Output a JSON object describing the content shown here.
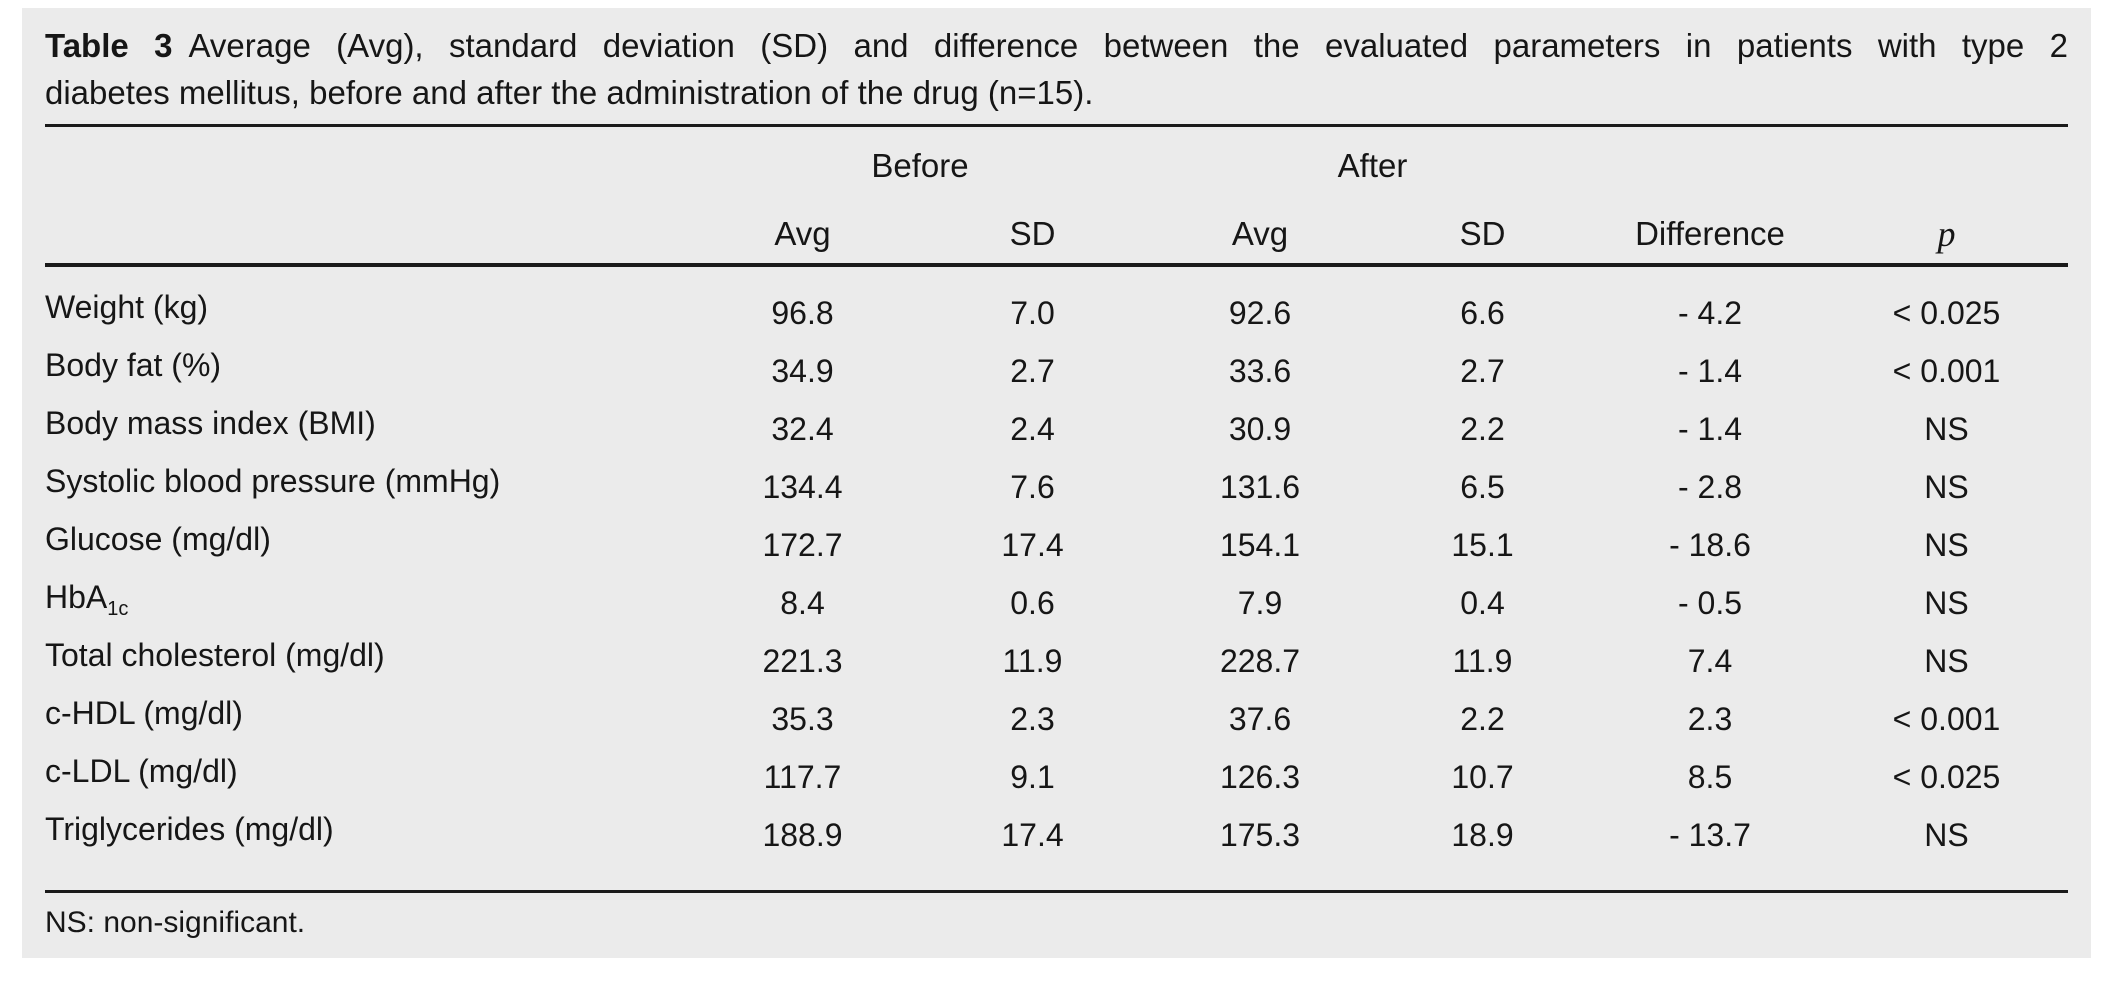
{
  "caption": {
    "label": "Table 3",
    "line1": "Average (Avg), standard deviation (SD) and difference between the evaluated parameters in patients with type 2",
    "line2": "diabetes mellitus, before and after the administration of the drug (n=15)."
  },
  "table": {
    "group_headers": {
      "before": "Before",
      "after": "After"
    },
    "col_headers": {
      "before_avg": "Avg",
      "before_sd": "SD",
      "after_avg": "Avg",
      "after_sd": "SD",
      "difference": "Difference",
      "p": "p"
    },
    "rows": [
      {
        "label": "Weight (kg)",
        "before_avg": "96.8",
        "before_sd": "7.0",
        "after_avg": "92.6",
        "after_sd": "6.6",
        "difference": "- 4.2",
        "p": "< 0.025"
      },
      {
        "label": "Body fat (%)",
        "before_avg": "34.9",
        "before_sd": "2.7",
        "after_avg": "33.6",
        "after_sd": "2.7",
        "difference": "- 1.4",
        "p": "< 0.001"
      },
      {
        "label": "Body mass index (BMI)",
        "before_avg": "32.4",
        "before_sd": "2.4",
        "after_avg": "30.9",
        "after_sd": "2.2",
        "difference": "- 1.4",
        "p": "NS"
      },
      {
        "label": "Systolic blood pressure (mmHg)",
        "before_avg": "134.4",
        "before_sd": "7.6",
        "after_avg": "131.6",
        "after_sd": "6.5",
        "difference": "- 2.8",
        "p": "NS"
      },
      {
        "label": "Glucose (mg/dl)",
        "before_avg": "172.7",
        "before_sd": "17.4",
        "after_avg": "154.1",
        "after_sd": "15.1",
        "difference": "- 18.6",
        "p": "NS"
      },
      {
        "label": "HbA",
        "label_sub": "1c",
        "before_avg": "8.4",
        "before_sd": "0.6",
        "after_avg": "7.9",
        "after_sd": "0.4",
        "difference": "- 0.5",
        "p": "NS"
      },
      {
        "label": "Total cholesterol (mg/dl)",
        "before_avg": "221.3",
        "before_sd": "11.9",
        "after_avg": "228.7",
        "after_sd": "11.9",
        "difference": "7.4",
        "p": "NS"
      },
      {
        "label": "c-HDL (mg/dl)",
        "before_avg": "35.3",
        "before_sd": "2.3",
        "after_avg": "37.6",
        "after_sd": "2.2",
        "difference": "2.3",
        "p": "< 0.001"
      },
      {
        "label": "c-LDL (mg/dl)",
        "before_avg": "117.7",
        "before_sd": "9.1",
        "after_avg": "126.3",
        "after_sd": "10.7",
        "difference": "8.5",
        "p": "< 0.025"
      },
      {
        "label": "Triglycerides (mg/dl)",
        "before_avg": "188.9",
        "before_sd": "17.4",
        "after_avg": "175.3",
        "after_sd": "18.9",
        "difference": "- 13.7",
        "p": "NS"
      }
    ],
    "footnote": "NS: non-significant."
  },
  "colors": {
    "panel_background": "#ebebeb",
    "text": "#161616",
    "rule": "#1a1a1a"
  }
}
